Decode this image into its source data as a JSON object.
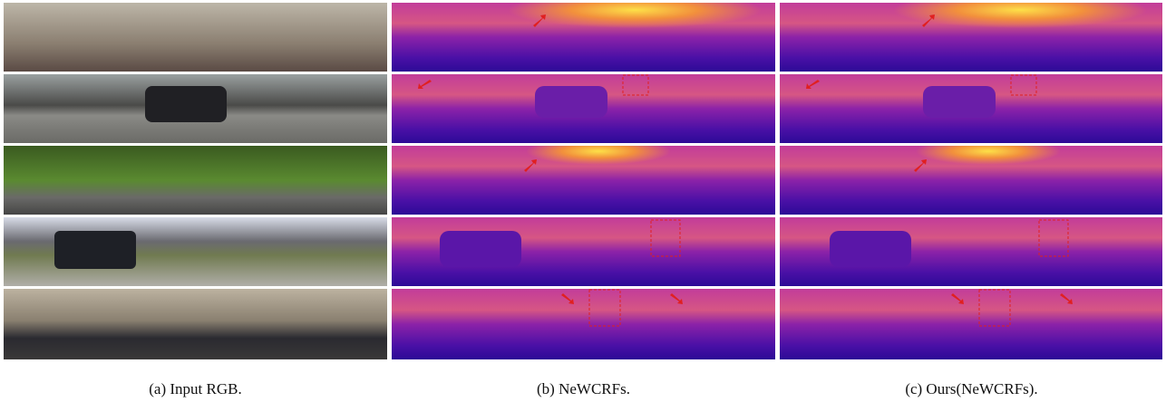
{
  "captions": [
    "(a) Input RGB.",
    "(b) NeWCRFs.",
    "(c) Ours(NeWCRFs)."
  ]
}
